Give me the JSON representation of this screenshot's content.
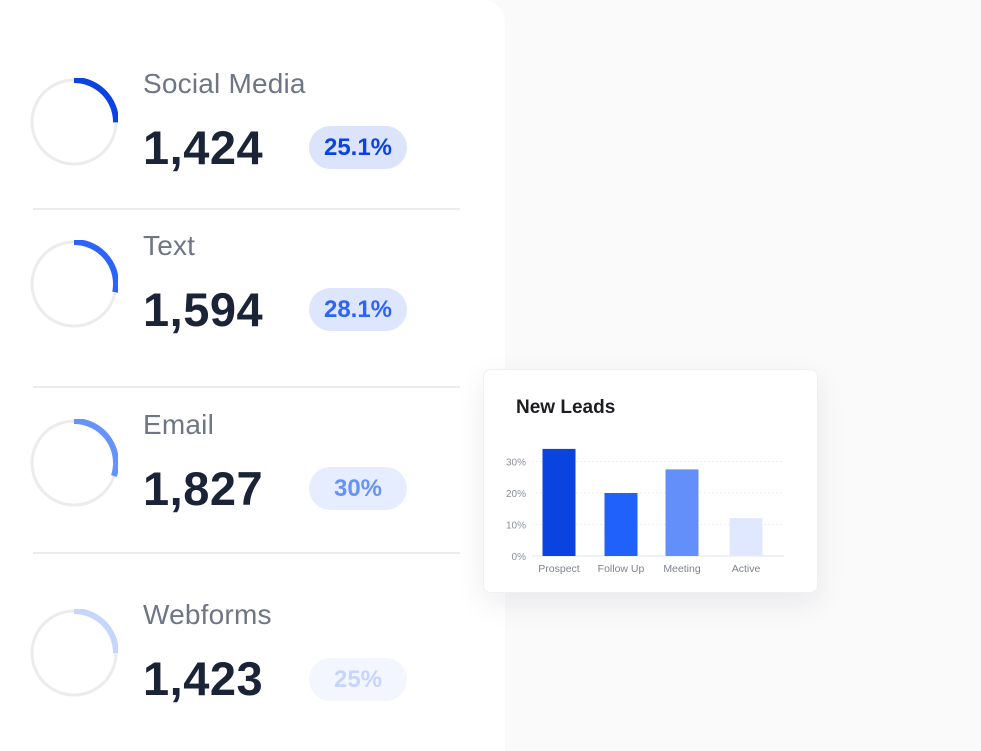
{
  "stats": [
    {
      "label": "Social Media",
      "value": "1,424",
      "percent": "25.1%",
      "fraction": 0.251,
      "color": "#0b43e1",
      "badge_bg": "#dbe4fb",
      "badge_color": "#0b43e1"
    },
    {
      "label": "Text",
      "value": "1,594",
      "percent": "28.1%",
      "fraction": 0.281,
      "color": "#2c63f8",
      "badge_bg": "#dde6fd",
      "badge_color": "#2c63f8"
    },
    {
      "label": "Email",
      "value": "1,827",
      "percent": "30%",
      "fraction": 0.3,
      "color": "#6592fb",
      "badge_bg": "#e6edfe",
      "badge_color": "#6592fb"
    },
    {
      "label": "Webforms",
      "value": "1,423",
      "percent": "25%",
      "fraction": 0.25,
      "color": "#c5d5fc",
      "badge_bg": "#f3f6fe",
      "badge_color": "#c5d5fc"
    }
  ],
  "card": {
    "title": "New Leads"
  },
  "chart_data": {
    "type": "bar",
    "title": "New Leads",
    "categories": [
      "Prospect",
      "Follow Up",
      "Meeting",
      "Active"
    ],
    "values": [
      34,
      20,
      27.5,
      12
    ],
    "colors": [
      "#0b43e1",
      "#2161fb",
      "#638ffb",
      "#dfe8fe"
    ],
    "yticks": [
      "0%",
      "10%",
      "20%",
      "30%"
    ],
    "ytick_values": [
      0,
      10,
      20,
      30
    ],
    "ylim": [
      0,
      34
    ],
    "grid": true
  }
}
